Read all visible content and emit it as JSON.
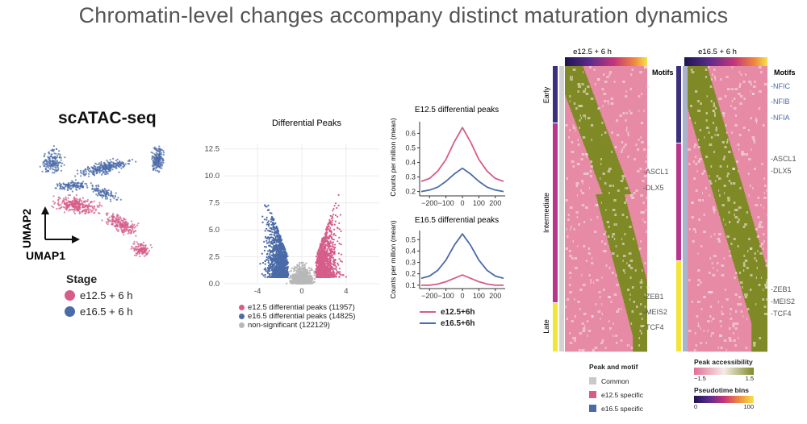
{
  "slide": {
    "title": "Chromatin-level changes accompany distinct maturation dynamics"
  },
  "colors": {
    "e12": "#d65d8a",
    "e16": "#4a6aa8",
    "ns": "#b8b8b8",
    "heat_low": "#e78aa6",
    "heat_mid": "#f3e6de",
    "heat_high": "#7f8a26"
  },
  "umap": {
    "title": "scATAC-seq",
    "axis_x": "UMAP1",
    "axis_y": "UMAP2",
    "legend_title": "Stage",
    "legend": [
      "e12.5 + 6 h",
      "e16.5 + 6 h"
    ]
  },
  "volcano": {
    "legend": [
      "e12.5 differential peaks (11957)",
      "e16.5 differential peaks (14825)",
      "non-significant (122129)"
    ]
  },
  "profile_legend": [
    "e12.5+6h",
    "e16.5+6h"
  ],
  "heatmap": {
    "panels": [
      "e12.5 + 6 h",
      "e16.5 + 6 h"
    ],
    "motifs_label": "Motifs",
    "stages": [
      "Early",
      "Intermediate",
      "Late"
    ],
    "motifs_left": [
      "-ASCL1",
      "-DLX5",
      "-ZEB1",
      "-MEIS2",
      "-TCF4"
    ],
    "motifs_right": [
      "-NFIC",
      "-NFIB",
      "-NFIA",
      "-ASCL1",
      "-DLX5",
      "-ZEB1",
      "-MEIS2",
      "-TCF4"
    ],
    "peak_motif_title": "Peak and motif",
    "peak_motif_items": [
      "Common",
      "e12.5 specific",
      "e16.5 specific"
    ],
    "accessibility_title": "Peak accessibility",
    "accessibility_ticks": [
      "−1.5",
      "1.5"
    ],
    "pseudotime_title": "Pseudotime bins",
    "pseudotime_ticks": [
      "0",
      "100"
    ]
  },
  "chart_data": [
    {
      "type": "scatter",
      "title": "Differential Peaks",
      "xlabel": "",
      "ylabel": "",
      "xlim": [
        -7,
        7
      ],
      "ylim": [
        0,
        13
      ],
      "xticks": [
        -4,
        0,
        4
      ],
      "yticks": [
        0.0,
        2.5,
        5.0,
        7.5,
        10.0,
        12.5
      ],
      "series": [
        {
          "name": "e12.5 differential peaks",
          "count": 11957,
          "x_range": [
            1.2,
            6.0
          ],
          "y_max": 10.3
        },
        {
          "name": "e16.5 differential peaks",
          "count": 14825,
          "x_range": [
            -6.0,
            -1.2
          ],
          "y_max": 11.2
        },
        {
          "name": "non-significant",
          "count": 122129,
          "x_range": [
            -1.2,
            1.2
          ],
          "y_max": 3.5
        }
      ]
    },
    {
      "type": "line",
      "title": "E12.5 differential peaks",
      "ylabel": "Counts per million (mean)",
      "x": [
        -250,
        -200,
        -150,
        -100,
        -50,
        0,
        50,
        100,
        150,
        200,
        250
      ],
      "xticks": [
        -200,
        -100,
        0,
        100,
        200
      ],
      "yticks": [
        0.2,
        0.3,
        0.4,
        0.5,
        0.6
      ],
      "ylim": [
        0.17,
        0.68
      ],
      "series": [
        {
          "name": "e12.5+6h",
          "values": [
            0.27,
            0.29,
            0.34,
            0.42,
            0.54,
            0.64,
            0.54,
            0.42,
            0.34,
            0.29,
            0.27
          ]
        },
        {
          "name": "e16.5+6h",
          "values": [
            0.2,
            0.21,
            0.23,
            0.27,
            0.32,
            0.36,
            0.32,
            0.27,
            0.23,
            0.21,
            0.2
          ]
        }
      ]
    },
    {
      "type": "line",
      "title": "E16.5 differential peaks",
      "ylabel": "Counts per million (mean)",
      "x": [
        -250,
        -200,
        -150,
        -100,
        -50,
        0,
        50,
        100,
        150,
        200,
        250
      ],
      "xticks": [
        -200,
        -100,
        0,
        100,
        200
      ],
      "yticks": [
        0.1,
        0.2,
        0.3,
        0.4,
        0.5
      ],
      "ylim": [
        0.07,
        0.58
      ],
      "series": [
        {
          "name": "e12.5+6h",
          "values": [
            0.1,
            0.1,
            0.11,
            0.13,
            0.16,
            0.19,
            0.16,
            0.13,
            0.11,
            0.1,
            0.1
          ]
        },
        {
          "name": "e16.5+6h",
          "values": [
            0.16,
            0.18,
            0.23,
            0.32,
            0.45,
            0.55,
            0.45,
            0.32,
            0.23,
            0.18,
            0.16
          ]
        }
      ]
    },
    {
      "type": "heatmap",
      "title": "e12.5 + 6 h / e16.5 + 6 h",
      "colorbar": {
        "title": "Peak accessibility",
        "range": [
          -1.5,
          1.5
        ]
      },
      "pseudotime_range": [
        0,
        100
      ],
      "row_groups": [
        "Early",
        "Intermediate",
        "Late"
      ]
    }
  ]
}
